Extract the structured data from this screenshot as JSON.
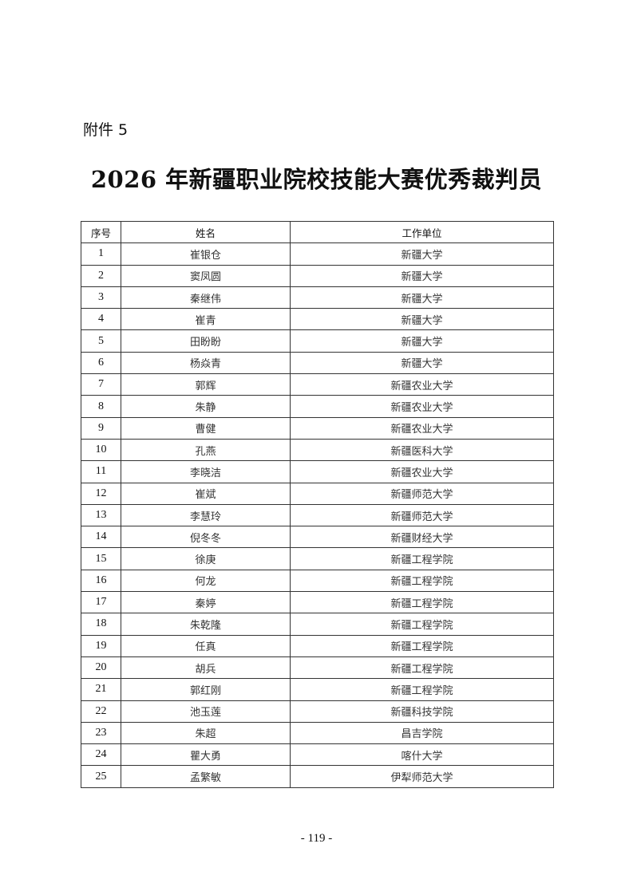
{
  "attachment_label": "附件 5",
  "title": "2026 年新疆职业院校技能大赛优秀裁判员",
  "table": {
    "headers": [
      "序号",
      "姓名",
      "工作单位"
    ],
    "rows": [
      [
        "1",
        "崔银仓",
        "新疆大学"
      ],
      [
        "2",
        "窦凤圆",
        "新疆大学"
      ],
      [
        "3",
        "秦继伟",
        "新疆大学"
      ],
      [
        "4",
        "崔青",
        "新疆大学"
      ],
      [
        "5",
        "田盼盼",
        "新疆大学"
      ],
      [
        "6",
        "杨焱青",
        "新疆大学"
      ],
      [
        "7",
        "郭辉",
        "新疆农业大学"
      ],
      [
        "8",
        "朱静",
        "新疆农业大学"
      ],
      [
        "9",
        "曹健",
        "新疆农业大学"
      ],
      [
        "10",
        "孔燕",
        "新疆医科大学"
      ],
      [
        "11",
        "李晓洁",
        "新疆农业大学"
      ],
      [
        "12",
        "崔斌",
        "新疆师范大学"
      ],
      [
        "13",
        "李慧玲",
        "新疆师范大学"
      ],
      [
        "14",
        "倪冬冬",
        "新疆财经大学"
      ],
      [
        "15",
        "徐庚",
        "新疆工程学院"
      ],
      [
        "16",
        "何龙",
        "新疆工程学院"
      ],
      [
        "17",
        "秦婷",
        "新疆工程学院"
      ],
      [
        "18",
        "朱乾隆",
        "新疆工程学院"
      ],
      [
        "19",
        "任真",
        "新疆工程学院"
      ],
      [
        "20",
        "胡兵",
        "新疆工程学院"
      ],
      [
        "21",
        "郭红刚",
        "新疆工程学院"
      ],
      [
        "22",
        "池玉莲",
        "新疆科技学院"
      ],
      [
        "23",
        "朱超",
        "昌吉学院"
      ],
      [
        "24",
        "瞿大勇",
        "喀什大学"
      ],
      [
        "25",
        "孟繁敏",
        "伊犁师范大学"
      ]
    ]
  },
  "page_number": "- 119 -"
}
